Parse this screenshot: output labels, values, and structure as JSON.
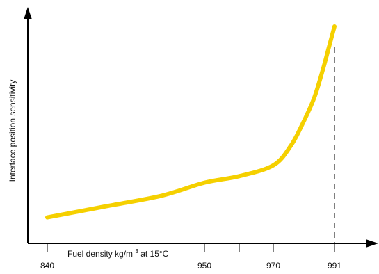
{
  "chart_data": {
    "type": "line",
    "title": "",
    "xlabel": "Fuel density kg/m³ at 15°C",
    "xlabel_parts": {
      "before": "Fuel density kg/m",
      "superscript": "3",
      "after": " at 15°C"
    },
    "ylabel": "Interface position sensitivity",
    "x_ticks": [
      {
        "value": 840,
        "label": "840"
      },
      {
        "value": 950,
        "label": "950"
      },
      {
        "value": 970,
        "label": "970"
      },
      {
        "value": 991,
        "label": "991"
      }
    ],
    "y_axis_numeric_labels": false,
    "marker": {
      "x": 991,
      "style": "dashed"
    },
    "series": [
      {
        "color": "#F5D000",
        "x": [
          840,
          880,
          920,
          950,
          960,
          970,
          976,
          980,
          984,
          987,
          989,
          991
        ],
        "y": [
          0.12,
          0.17,
          0.22,
          0.28,
          0.31,
          0.36,
          0.45,
          0.55,
          0.67,
          0.8,
          0.9,
          1.0
        ]
      }
    ],
    "grid": false,
    "legend": "none"
  },
  "colors": {
    "axis": "#000000",
    "curve": "#F5D000",
    "marker": "#000000"
  }
}
